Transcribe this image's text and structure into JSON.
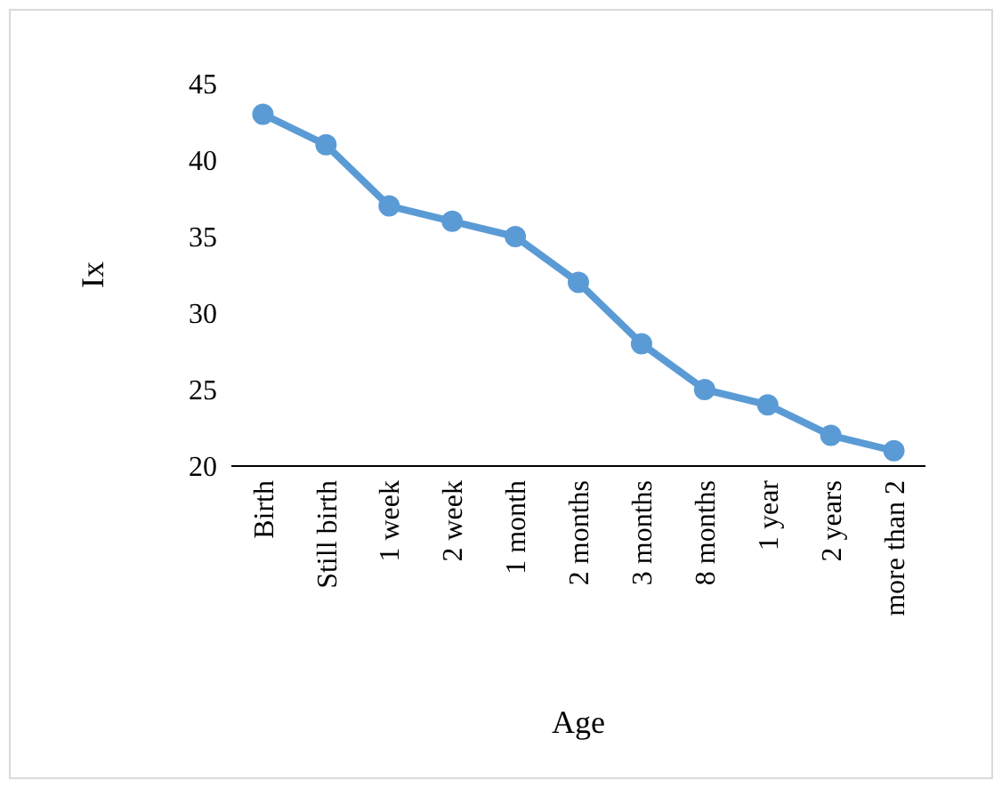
{
  "chart_data": {
    "type": "line",
    "xlabel": "Age",
    "ylabel": "Ix",
    "categories": [
      "Birth",
      "Still birth",
      "1 week",
      "2 week",
      "1 month",
      "2 months",
      "3 months",
      "8 months",
      "1 year",
      "2 years",
      "more than 2"
    ],
    "series": [
      {
        "color": "#5b9bd5",
        "values": [
          43,
          41,
          37,
          36,
          35,
          32,
          28,
          25,
          24,
          22,
          21
        ]
      }
    ],
    "ylim": [
      20,
      45
    ],
    "yticks": [
      20,
      25,
      30,
      35,
      40,
      45
    ],
    "marker": "circle",
    "line_style": "solid"
  }
}
